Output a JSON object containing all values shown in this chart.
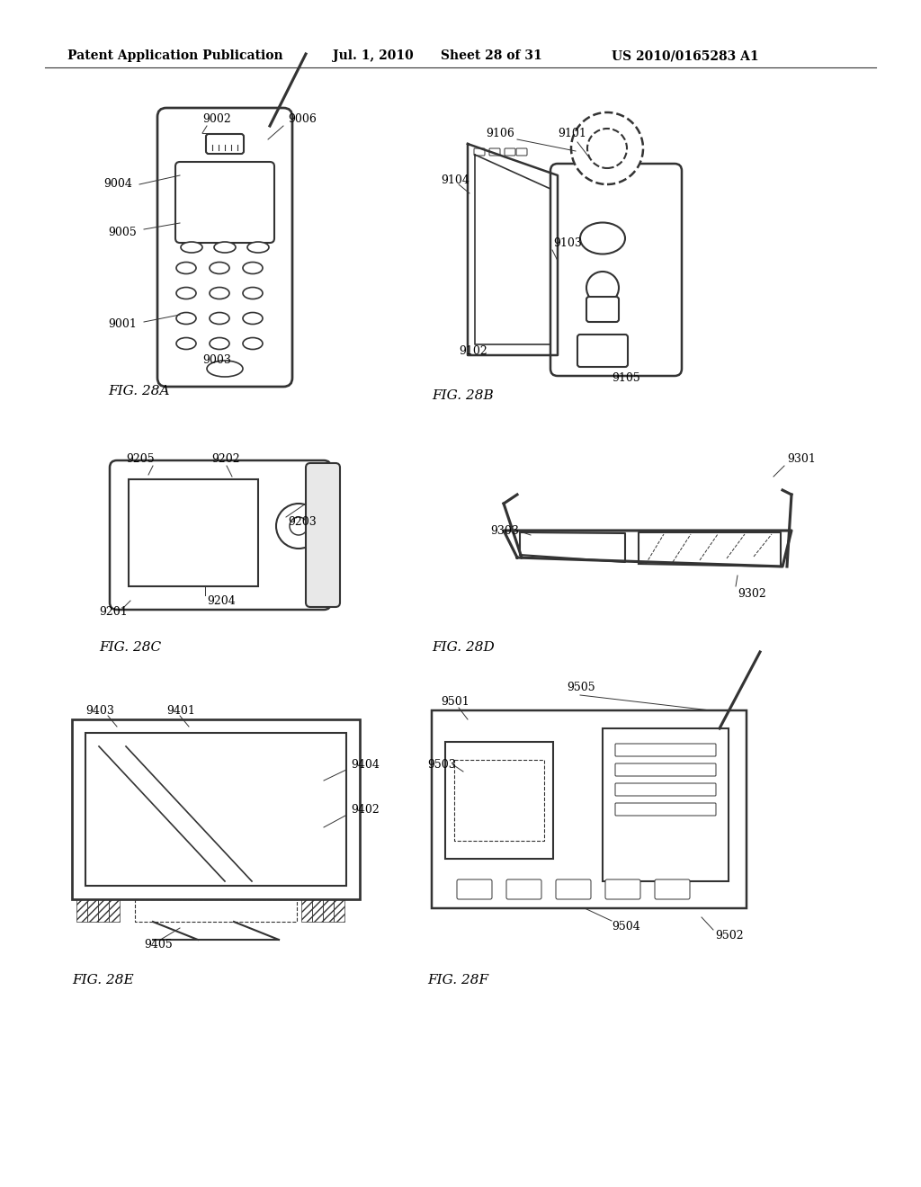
{
  "bg_color": "#ffffff",
  "header_text": "Patent Application Publication",
  "header_date": "Jul. 1, 2010",
  "header_sheet": "Sheet 28 of 31",
  "header_patent": "US 2010/0165283 A1",
  "line_color": "#333333",
  "line_width": 1.5
}
